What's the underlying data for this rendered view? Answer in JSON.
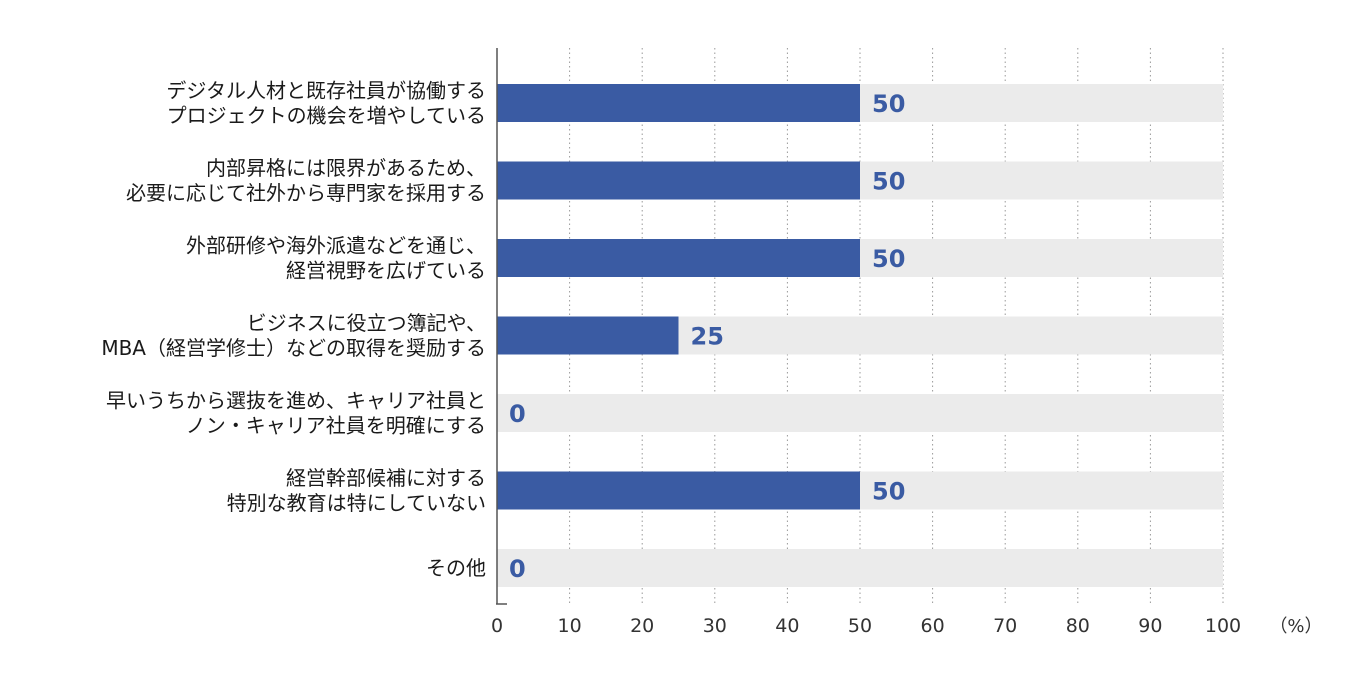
{
  "chart_data": {
    "type": "bar",
    "orientation": "horizontal",
    "categories": [
      [
        "デジタル人材と既存社員が協働する",
        "プロジェクトの機会を増やしている"
      ],
      [
        "内部昇格には限界があるため、",
        "必要に応じて社外から専門家を採用する"
      ],
      [
        "外部研修や海外派遣などを通じ、",
        "経営視野を広げている"
      ],
      [
        "ビジネスに役立つ簿記や、",
        "MBA（経営学修士）などの取得を奨励する"
      ],
      [
        "早いうちから選抜を進め、キャリア社員と",
        "ノン・キャリア社員を明確にする"
      ],
      [
        "経営幹部候補に対する",
        "特別な教育は特にしていない"
      ],
      [
        "その他"
      ]
    ],
    "values": [
      50,
      50,
      50,
      25,
      0,
      50,
      0
    ],
    "xlim": [
      0,
      100
    ],
    "xticks": [
      0,
      10,
      20,
      30,
      40,
      50,
      60,
      70,
      80,
      90,
      100
    ],
    "unit": "（%）",
    "grid": true,
    "colors": {
      "bar": "#3a5ba3",
      "track": "#ebebeb",
      "label": "#3a5ba3",
      "axis": "#555555",
      "grid": "#999999"
    }
  }
}
